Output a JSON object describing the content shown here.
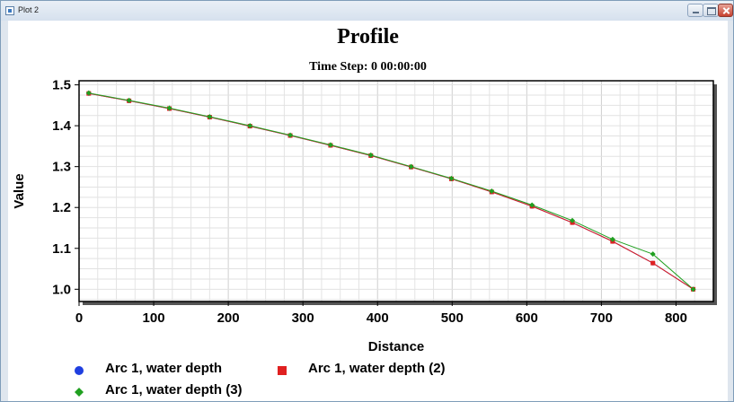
{
  "window": {
    "title": "Plot 2"
  },
  "plot": {
    "title": "Profile",
    "subtitle": "Time Step: 0 00:00:00"
  },
  "legend": {
    "items": [
      {
        "label": "Arc 1, water depth",
        "marker": "circle",
        "color": "#1f3fe0"
      },
      {
        "label": "Arc 1, water depth (2)",
        "marker": "square",
        "color": "#e02020"
      },
      {
        "label": "Arc 1, water depth (3)",
        "marker": "diamond",
        "color": "#20a020"
      }
    ]
  },
  "chart_data": {
    "type": "line",
    "title": "Profile",
    "subtitle": "Time Step: 0 00:00:00",
    "xlabel": "Distance",
    "ylabel": "Value",
    "xlim": [
      0,
      850
    ],
    "ylim": [
      0.97,
      1.51
    ],
    "xticks": [
      0,
      100,
      200,
      300,
      400,
      500,
      600,
      700,
      800
    ],
    "yticks": [
      1.0,
      1.1,
      1.2,
      1.3,
      1.4,
      1.5
    ],
    "yticklabels": [
      "1.0",
      "1.1",
      "1.2",
      "1.3",
      "1.4",
      "1.5"
    ],
    "grid": true,
    "legend": "bottom",
    "x": [
      13,
      67,
      121,
      175,
      229,
      283,
      337,
      391,
      445,
      499,
      553,
      607,
      661,
      715,
      769,
      823
    ],
    "series": [
      {
        "name": "Arc 1, water depth",
        "color": "#1f3fe0",
        "marker": "circle",
        "values": [
          1.479,
          1.461,
          1.442,
          1.421,
          1.399,
          1.376,
          1.352,
          1.327,
          1.299,
          1.27,
          1.238,
          1.203,
          1.163,
          1.117,
          1.064,
          1.0
        ]
      },
      {
        "name": "Arc 1, water depth (2)",
        "color": "#e02020",
        "marker": "square",
        "values": [
          1.479,
          1.461,
          1.442,
          1.421,
          1.399,
          1.376,
          1.352,
          1.327,
          1.299,
          1.27,
          1.238,
          1.203,
          1.163,
          1.117,
          1.064,
          1.0
        ]
      },
      {
        "name": "Arc 1, water depth (3)",
        "color": "#20a020",
        "marker": "diamond",
        "values": [
          1.48,
          1.462,
          1.443,
          1.422,
          1.4,
          1.377,
          1.353,
          1.328,
          1.3,
          1.271,
          1.24,
          1.206,
          1.168,
          1.122,
          1.086,
          1.0
        ]
      }
    ]
  }
}
